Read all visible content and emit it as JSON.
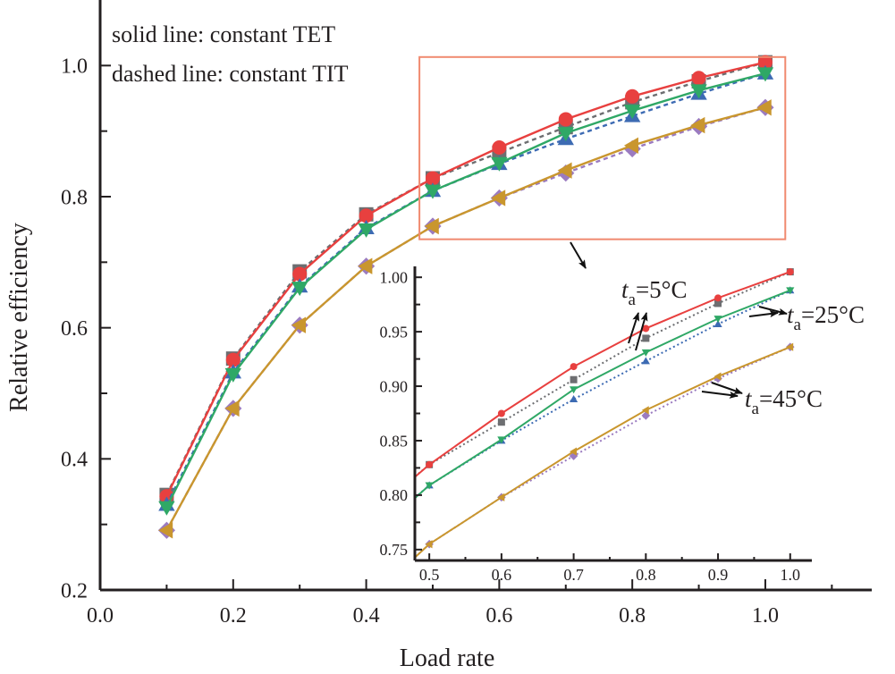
{
  "chart_data": {
    "type": "line",
    "title": "",
    "xlabel": "Load rate",
    "ylabel": "Relative efficiency",
    "xlim": [
      0.0,
      1.16
    ],
    "ylim": [
      0.2,
      1.1
    ],
    "xticks": [
      "0.0",
      "0.2",
      "0.4",
      "0.6",
      "0.8",
      "1.0"
    ],
    "yticks": [
      "0.2",
      "0.4",
      "0.6",
      "0.8",
      "1.0"
    ],
    "grid": false,
    "notes": [
      "solid line: constant TET",
      "dashed line: constant TIT"
    ],
    "x": [
      0.1,
      0.2,
      0.3,
      0.4,
      0.5,
      0.6,
      0.7,
      0.8,
      0.9,
      1.0
    ],
    "series": [
      {
        "name": "ta=5°C constant TIT",
        "style": "dashed",
        "marker": "square",
        "color": "#6d6e71",
        "values": [
          0.345,
          0.553,
          0.686,
          0.773,
          0.828,
          0.867,
          0.906,
          0.944,
          0.976,
          1.005
        ]
      },
      {
        "name": "ta=5°C constant TET",
        "style": "solid",
        "marker": "circle",
        "color": "#e8403f",
        "values": [
          0.343,
          0.551,
          0.682,
          0.771,
          0.828,
          0.875,
          0.918,
          0.953,
          0.981,
          1.005
        ]
      },
      {
        "name": "ta=25°C constant TIT",
        "style": "dashed",
        "marker": "triangle-up",
        "color": "#3d6bb3",
        "values": [
          0.33,
          0.532,
          0.663,
          0.752,
          0.809,
          0.85,
          0.888,
          0.923,
          0.957,
          0.988
        ]
      },
      {
        "name": "ta=25°C constant TET",
        "style": "solid",
        "marker": "triangle-down",
        "color": "#2fa866",
        "values": [
          0.326,
          0.529,
          0.661,
          0.75,
          0.809,
          0.851,
          0.897,
          0.931,
          0.962,
          0.988
        ]
      },
      {
        "name": "ta=45°C constant TIT",
        "style": "dashed",
        "marker": "diamond",
        "color": "#9b7bc0",
        "values": [
          0.291,
          0.477,
          0.604,
          0.694,
          0.755,
          0.798,
          0.836,
          0.873,
          0.907,
          0.936
        ]
      },
      {
        "name": "ta=45°C constant TET",
        "style": "solid",
        "marker": "triangle-left",
        "color": "#c9962e",
        "values": [
          0.291,
          0.477,
          0.604,
          0.694,
          0.755,
          0.798,
          0.84,
          0.878,
          0.909,
          0.936
        ]
      }
    ],
    "zoom_box": {
      "xrange": [
        0.48,
        1.03
      ],
      "yrange": [
        0.735,
        1.013
      ],
      "color": "#f08a70"
    },
    "inset": {
      "xlim": [
        0.48,
        1.03
      ],
      "ylim": [
        0.74,
        1.01
      ],
      "xticks": [
        "0.5",
        "0.6",
        "0.7",
        "0.8",
        "0.9",
        "1.0"
      ],
      "yticks": [
        "0.75",
        "0.80",
        "0.85",
        "0.90",
        "0.95",
        "1.00"
      ],
      "x_from": 0.5
    },
    "annotations": [
      {
        "var": "t",
        "sub": "a",
        "text": "=5°C"
      },
      {
        "var": "t",
        "sub": "a",
        "text": "=25°C"
      },
      {
        "var": "t",
        "sub": "a",
        "text": "=45°C"
      }
    ]
  }
}
